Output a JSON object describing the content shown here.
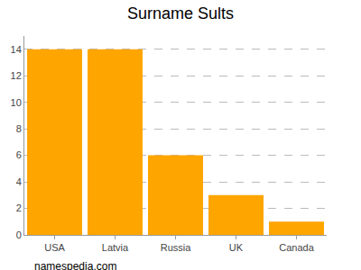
{
  "chart_data": {
    "type": "bar",
    "title": "Surname Sults",
    "categories": [
      "USA",
      "Latvia",
      "Russia",
      "UK",
      "Canada"
    ],
    "values": [
      14,
      14,
      6,
      3,
      1
    ],
    "color": "#ffa500",
    "ylim": [
      0,
      15
    ],
    "yticks": [
      0,
      2,
      4,
      6,
      8,
      10,
      12,
      14
    ],
    "grid": true,
    "annotations": [
      "namespedia.com"
    ]
  }
}
